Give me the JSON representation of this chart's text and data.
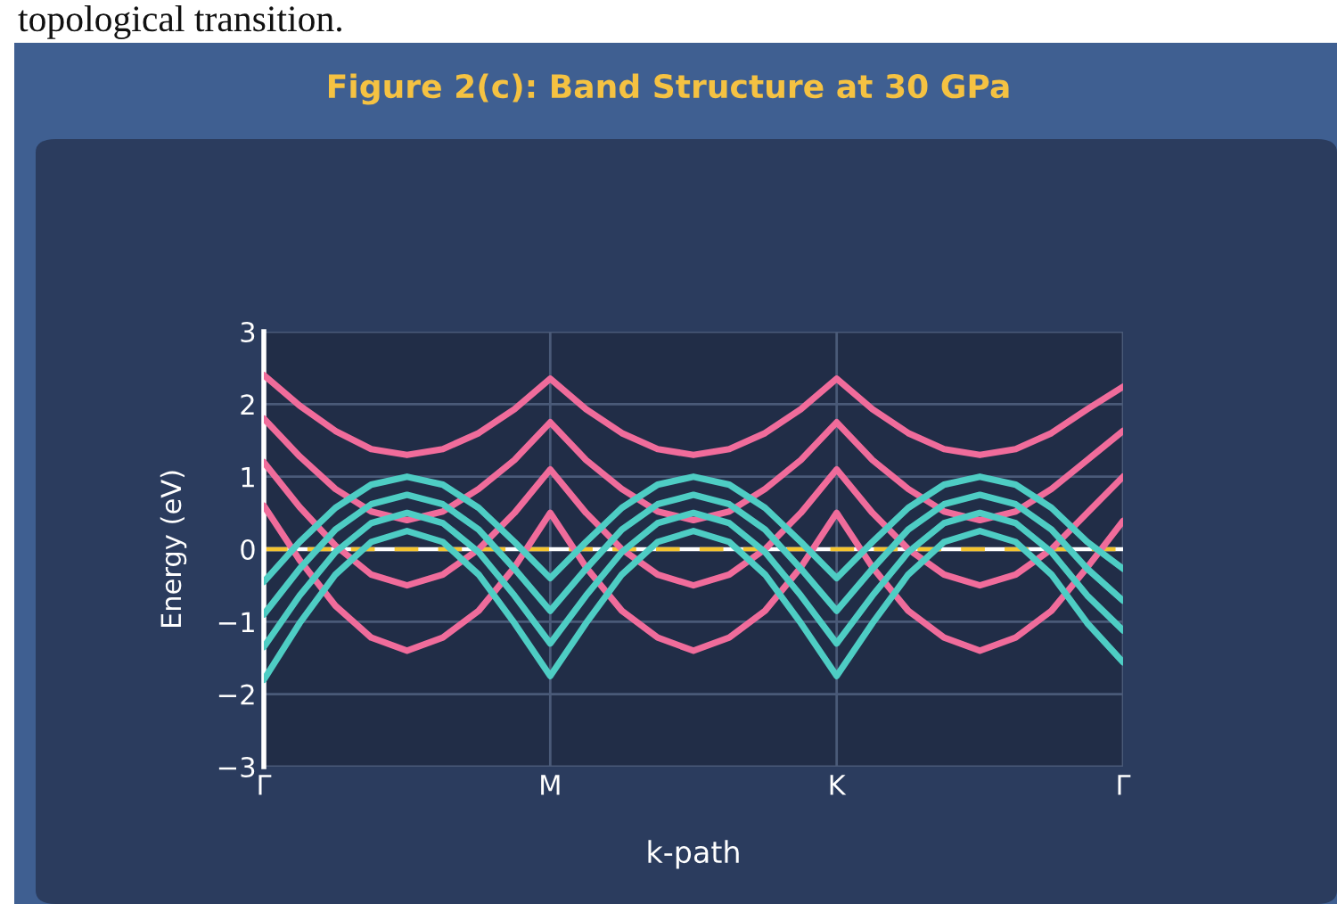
{
  "chart_data": {
    "type": "line",
    "title": "Figure 2(c): Band Structure at 30 GPa",
    "xlabel": "k-path",
    "ylabel": "Energy (eV)",
    "annotations": [
      "topological transition."
    ],
    "categories": [
      "Γ",
      null,
      null,
      null,
      null,
      null,
      null,
      null,
      "M",
      null,
      null,
      null,
      null,
      null,
      null,
      null,
      "K",
      null,
      null,
      null,
      null,
      null,
      null,
      null,
      "Γ"
    ],
    "series": [
      {
        "color": "#f06c9b",
        "values": [
          2.4,
          1.98,
          1.63,
          1.38,
          1.3,
          1.38,
          1.6,
          1.93,
          2.35,
          1.93,
          1.6,
          1.38,
          1.3,
          1.38,
          1.6,
          1.93,
          2.35,
          1.93,
          1.6,
          1.38,
          1.3,
          1.38,
          1.6,
          1.93,
          2.24
        ]
      },
      {
        "color": "#f06c9b",
        "values": [
          1.8,
          1.28,
          0.83,
          0.52,
          0.4,
          0.52,
          0.83,
          1.23,
          1.75,
          1.23,
          0.83,
          0.52,
          0.4,
          0.52,
          0.83,
          1.23,
          1.75,
          1.23,
          0.83,
          0.52,
          0.4,
          0.52,
          0.83,
          1.23,
          1.63
        ]
      },
      {
        "color": "#f06c9b",
        "values": [
          1.2,
          0.58,
          0.05,
          -0.35,
          -0.5,
          -0.35,
          0.0,
          0.5,
          1.1,
          0.5,
          0.0,
          -0.35,
          -0.5,
          -0.35,
          0.0,
          0.5,
          1.1,
          0.5,
          0.0,
          -0.35,
          -0.5,
          -0.35,
          0.0,
          0.5,
          1.0
        ]
      },
      {
        "color": "#f06c9b",
        "values": [
          0.6,
          -0.15,
          -0.78,
          -1.22,
          -1.4,
          -1.22,
          -0.85,
          -0.25,
          0.5,
          -0.25,
          -0.85,
          -1.22,
          -1.4,
          -1.22,
          -0.85,
          -0.25,
          0.5,
          -0.25,
          -0.85,
          -1.22,
          -1.4,
          -1.22,
          -0.85,
          -0.25,
          0.39
        ]
      },
      {
        "color": "#4ecdc4",
        "values": [
          -0.45,
          0.1,
          0.57,
          0.89,
          1.0,
          0.89,
          0.57,
          0.1,
          -0.4,
          0.1,
          0.57,
          0.89,
          1.0,
          0.89,
          0.57,
          0.1,
          -0.4,
          0.1,
          0.57,
          0.89,
          1.0,
          0.89,
          0.57,
          0.1,
          -0.27
        ]
      },
      {
        "color": "#4ecdc4",
        "values": [
          -0.9,
          -0.27,
          0.27,
          0.62,
          0.75,
          0.62,
          0.27,
          -0.27,
          -0.85,
          -0.27,
          0.27,
          0.62,
          0.75,
          0.62,
          0.27,
          -0.27,
          -0.85,
          -0.27,
          0.27,
          0.62,
          0.75,
          0.62,
          0.27,
          -0.27,
          -0.71
        ]
      },
      {
        "color": "#4ecdc4",
        "values": [
          -1.35,
          -0.64,
          -0.04,
          0.36,
          0.5,
          0.36,
          -0.04,
          -0.64,
          -1.3,
          -0.64,
          -0.04,
          0.36,
          0.5,
          0.36,
          -0.04,
          -0.64,
          -1.3,
          -0.64,
          -0.04,
          0.36,
          0.5,
          0.36,
          -0.04,
          -0.64,
          -1.12
        ]
      },
      {
        "color": "#4ecdc4",
        "values": [
          -1.8,
          -1.02,
          -0.35,
          0.1,
          0.25,
          0.1,
          -0.35,
          -1.02,
          -1.75,
          -1.02,
          -0.35,
          0.1,
          0.25,
          0.1,
          -0.35,
          -1.02,
          -1.75,
          -1.02,
          -0.35,
          0.1,
          0.25,
          0.1,
          -0.35,
          -1.02,
          -1.56
        ]
      }
    ],
    "ylim": [
      -3,
      3
    ],
    "yticks": [
      -3,
      -2,
      -1,
      0,
      1,
      2,
      3
    ],
    "ref_lines": [
      {
        "axis": "y",
        "value": 0,
        "color": "#ffffff",
        "line_style": "solid"
      },
      {
        "axis": "y",
        "value": 0,
        "color": "#f4c430",
        "line_style": "dashed"
      }
    ],
    "grid": true,
    "legend": false,
    "marker": "none",
    "line_style": "solid"
  }
}
